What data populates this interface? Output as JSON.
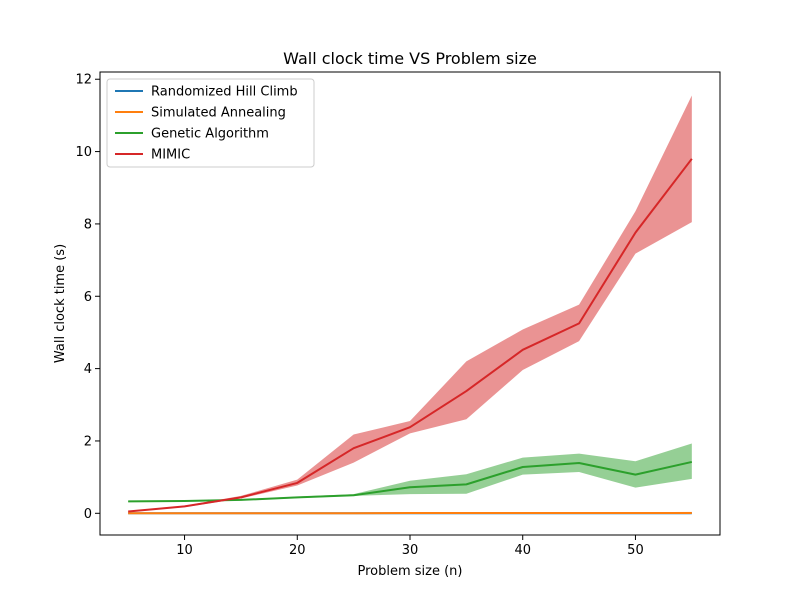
{
  "chart_data": {
    "type": "line",
    "title": "Wall clock time VS Problem size",
    "xlabel": "Problem size (n)",
    "ylabel": "Wall clock time (s)",
    "xlim": [
      2.5,
      57.5
    ],
    "ylim": [
      -0.6,
      12.2
    ],
    "xticks": [
      10,
      20,
      30,
      40,
      50
    ],
    "yticks": [
      0,
      2,
      4,
      6,
      8,
      10,
      12
    ],
    "grid": false,
    "legend_position": "upper-left",
    "x": [
      5,
      10,
      15,
      20,
      25,
      30,
      35,
      40,
      45,
      50,
      55
    ],
    "series": [
      {
        "name": "Randomized Hill Climb",
        "color": "#1f77b4",
        "values": [
          0.0,
          0.0,
          0.0,
          0.0,
          0.0,
          0.0,
          0.0,
          0.0,
          0.0,
          0.0,
          0.0
        ],
        "lower": [
          0.0,
          0.0,
          0.0,
          0.0,
          0.0,
          0.0,
          0.0,
          0.0,
          0.0,
          0.0,
          0.0
        ],
        "upper": [
          0.0,
          0.0,
          0.0,
          0.0,
          0.0,
          0.0,
          0.0,
          0.0,
          0.0,
          0.0,
          0.0
        ]
      },
      {
        "name": "Simulated Annealing",
        "color": "#ff7f0e",
        "values": [
          0.0,
          0.0,
          0.0,
          0.0,
          0.0,
          0.01,
          0.01,
          0.01,
          0.01,
          0.01,
          0.01
        ],
        "lower": [
          0.0,
          0.0,
          0.0,
          0.0,
          0.0,
          0.0,
          0.0,
          0.0,
          0.0,
          0.0,
          0.0
        ],
        "upper": [
          0.0,
          0.0,
          0.01,
          0.01,
          0.01,
          0.01,
          0.02,
          0.02,
          0.03,
          0.03,
          0.04
        ]
      },
      {
        "name": "Genetic Algorithm",
        "color": "#2ca02c",
        "values": [
          0.33,
          0.34,
          0.37,
          0.44,
          0.5,
          0.72,
          0.8,
          1.28,
          1.39,
          1.07,
          1.42
        ],
        "lower": [
          0.32,
          0.33,
          0.35,
          0.42,
          0.48,
          0.53,
          0.54,
          1.07,
          1.14,
          0.71,
          0.95
        ],
        "upper": [
          0.34,
          0.35,
          0.39,
          0.46,
          0.53,
          0.9,
          1.08,
          1.54,
          1.65,
          1.44,
          1.93
        ]
      },
      {
        "name": "MIMIC",
        "color": "#d62728",
        "values": [
          0.05,
          0.19,
          0.44,
          0.84,
          1.8,
          2.38,
          3.38,
          4.52,
          5.25,
          7.76,
          9.8
        ],
        "lower": [
          0.04,
          0.17,
          0.41,
          0.77,
          1.4,
          2.21,
          2.6,
          3.96,
          4.76,
          7.18,
          8.05
        ],
        "upper": [
          0.06,
          0.21,
          0.48,
          0.93,
          2.18,
          2.55,
          4.2,
          5.08,
          5.77,
          8.35,
          11.55
        ]
      }
    ]
  }
}
